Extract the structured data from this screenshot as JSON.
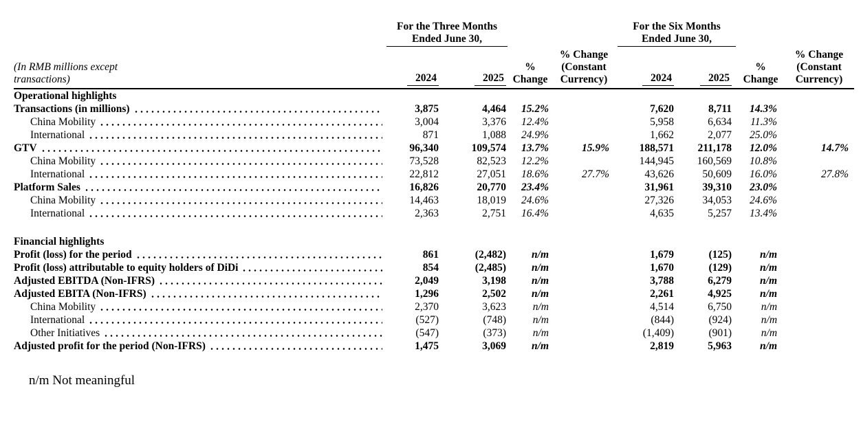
{
  "page": {
    "background": "#ffffff",
    "text_color": "#000000"
  },
  "table": {
    "caption": {
      "line1": "(In RMB millions except",
      "line2": "transactions)"
    },
    "group_headers": [
      {
        "line1": "For the Three Months",
        "line2": "Ended June 30,"
      },
      {
        "line1": "For the Six Months",
        "line2": "Ended June 30,"
      }
    ],
    "col_headers": {
      "year_2024": "2024",
      "year_2025": "2025",
      "pct": {
        "line1": "%",
        "line2": "Change"
      },
      "cc": {
        "line1": "% Change",
        "line2": "(Constant",
        "line3": "Currency)"
      }
    },
    "rows": [
      {
        "type": "section",
        "label": "Operational highlights",
        "indent": false,
        "values": null
      },
      {
        "type": "bold",
        "label": "Transactions (in millions)",
        "indent": false,
        "values": [
          "3,875",
          "4,464",
          "15.2%",
          "",
          "7,620",
          "8,711",
          "14.3%",
          ""
        ]
      },
      {
        "type": "sub",
        "label": "China Mobility",
        "indent": true,
        "values": [
          "3,004",
          "3,376",
          "12.4%",
          "",
          "5,958",
          "6,634",
          "11.3%",
          ""
        ]
      },
      {
        "type": "sub",
        "label": "International",
        "indent": true,
        "values": [
          "871",
          "1,088",
          "24.9%",
          "",
          "1,662",
          "2,077",
          "25.0%",
          ""
        ]
      },
      {
        "type": "bold",
        "label": "GTV",
        "indent": false,
        "values": [
          "96,340",
          "109,574",
          "13.7%",
          "15.9%",
          "188,571",
          "211,178",
          "12.0%",
          "14.7%"
        ]
      },
      {
        "type": "sub",
        "label": "China Mobility",
        "indent": true,
        "values": [
          "73,528",
          "82,523",
          "12.2%",
          "",
          "144,945",
          "160,569",
          "10.8%",
          ""
        ]
      },
      {
        "type": "sub",
        "label": "International",
        "indent": true,
        "values": [
          "22,812",
          "27,051",
          "18.6%",
          "27.7%",
          "43,626",
          "50,609",
          "16.0%",
          "27.8%"
        ]
      },
      {
        "type": "bold",
        "label": "Platform Sales",
        "indent": false,
        "values": [
          "16,826",
          "20,770",
          "23.4%",
          "",
          "31,961",
          "39,310",
          "23.0%",
          ""
        ]
      },
      {
        "type": "sub",
        "label": "China Mobility",
        "indent": true,
        "values": [
          "14,463",
          "18,019",
          "24.6%",
          "",
          "27,326",
          "34,053",
          "24.6%",
          ""
        ]
      },
      {
        "type": "sub",
        "label": "International",
        "indent": true,
        "values": [
          "2,363",
          "2,751",
          "16.4%",
          "",
          "4,635",
          "5,257",
          "13.4%",
          ""
        ]
      },
      {
        "type": "spacer",
        "label": "",
        "indent": false,
        "values": null
      },
      {
        "type": "section",
        "label": "Financial highlights",
        "indent": false,
        "values": null
      },
      {
        "type": "bold",
        "label": "Profit (loss) for the period",
        "indent": false,
        "values": [
          "861",
          "(2,482)",
          "n/m",
          "",
          "1,679",
          "(125)",
          "n/m",
          ""
        ]
      },
      {
        "type": "bold",
        "label": "Profit (loss) attributable to equity holders of DiDi",
        "indent": false,
        "values": [
          "854",
          "(2,485)",
          "n/m",
          "",
          "1,670",
          "(129)",
          "n/m",
          ""
        ]
      },
      {
        "type": "bold",
        "label": "Adjusted EBITDA (Non-IFRS)",
        "indent": false,
        "values": [
          "2,049",
          "3,198",
          "n/m",
          "",
          "3,788",
          "6,279",
          "n/m",
          ""
        ]
      },
      {
        "type": "bold",
        "label": "Adjusted EBITA (Non-IFRS)",
        "indent": false,
        "values": [
          "1,296",
          "2,502",
          "n/m",
          "",
          "2,261",
          "4,925",
          "n/m",
          ""
        ]
      },
      {
        "type": "sub",
        "label": "China Mobility",
        "indent": true,
        "values": [
          "2,370",
          "3,623",
          "n/m",
          "",
          "4,514",
          "6,750",
          "n/m",
          ""
        ]
      },
      {
        "type": "sub",
        "label": "International",
        "indent": true,
        "values": [
          "(527)",
          "(748)",
          "n/m",
          "",
          "(844)",
          "(924)",
          "n/m",
          ""
        ]
      },
      {
        "type": "sub",
        "label": "Other Initiatives",
        "indent": true,
        "values": [
          "(547)",
          "(373)",
          "n/m",
          "",
          "(1,409)",
          "(901)",
          "n/m",
          ""
        ]
      },
      {
        "type": "bold",
        "label": "Adjusted profit for the period (Non-IFRS)",
        "indent": false,
        "values": [
          "1,475",
          "3,069",
          "n/m",
          "",
          "2,819",
          "5,963",
          "n/m",
          ""
        ]
      }
    ]
  },
  "footnote": "n/m Not meaningful"
}
